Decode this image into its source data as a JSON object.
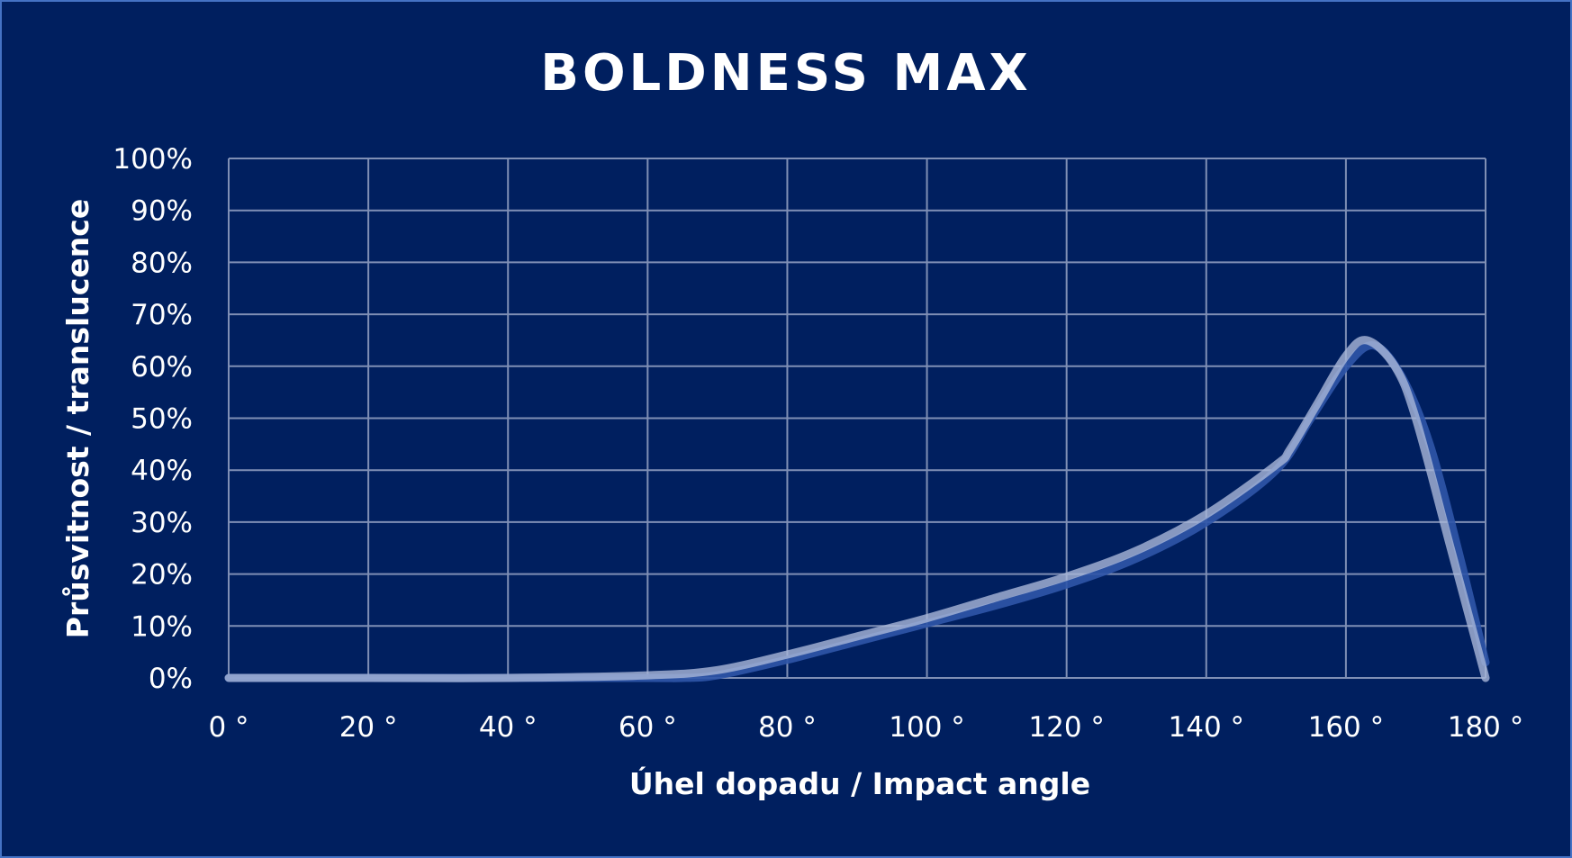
{
  "chart_data": {
    "type": "line",
    "title": "BOLDNESS MAX",
    "xlabel": "Úhel dopadu / Impact angle",
    "ylabel": "Průsvitnost / translucence",
    "xlim": [
      0,
      180
    ],
    "ylim": [
      0,
      100
    ],
    "grid": true,
    "legend": "none",
    "x_ticks": [
      "0 °",
      "20 °",
      "40 °",
      "60 °",
      "80 °",
      "100 °",
      "120 °",
      "140 °",
      "160 °",
      "180 °"
    ],
    "y_ticks": [
      "0%",
      "10%",
      "20%",
      "30%",
      "40%",
      "50%",
      "60%",
      "70%",
      "80%",
      "90%",
      "100%"
    ],
    "series": [
      {
        "color": "#2f55a8",
        "x": [
          0,
          20,
          40,
          60,
          65,
          70,
          80,
          90,
          100,
          110,
          120,
          130,
          140,
          150,
          155,
          160,
          164,
          168,
          172,
          176,
          180
        ],
        "values": [
          0,
          0,
          0,
          0,
          0,
          0.5,
          3.5,
          7,
          10.5,
          14,
          18,
          23,
          30,
          40,
          50,
          60,
          64,
          58,
          45,
          25,
          3
        ]
      },
      {
        "color": "#a9b7d8",
        "x": [
          0,
          20,
          40,
          60,
          70,
          80,
          90,
          100,
          110,
          120,
          130,
          140,
          150,
          152,
          156,
          160,
          163,
          167,
          170,
          175,
          180
        ],
        "values": [
          0,
          0,
          0,
          0.5,
          1.5,
          4.5,
          8,
          11.5,
          15.5,
          19.5,
          24.5,
          31.5,
          41,
          44,
          53,
          62,
          65,
          60,
          50,
          25,
          0
        ]
      }
    ]
  },
  "colors": {
    "background": "#001f5f",
    "border": "#4472c4",
    "grid": "#7f8fb5"
  }
}
